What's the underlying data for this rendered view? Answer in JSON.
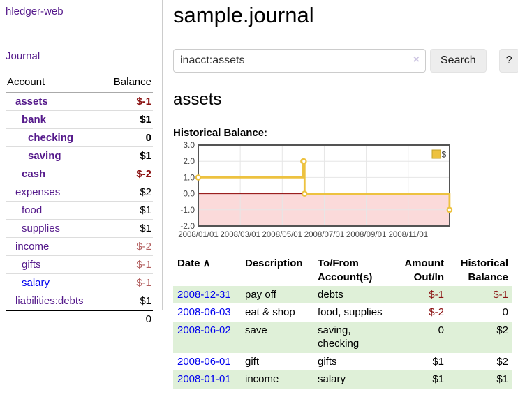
{
  "app": {
    "brand": "hledger-web"
  },
  "colors": {
    "link_purple": "#551a8b",
    "link_blue": "#0000ee",
    "negative_strong": "#8b1212",
    "negative_soft": "#b25e5e",
    "row_stripe_green": "#dff0d8",
    "chart_series_gold": "#edc240",
    "chart_negative_region": "#fbdada",
    "chart_zero_line": "#8b0000"
  },
  "sidebar": {
    "journal_link": "Journal",
    "accounts": {
      "header_account": "Account",
      "header_balance": "Balance",
      "rows": [
        {
          "name": "assets",
          "depth": 0,
          "strong": true,
          "balance": "$-1",
          "balance_class": "neg-strong"
        },
        {
          "name": "bank",
          "depth": 1,
          "strong": true,
          "balance": "$1",
          "balance_class": ""
        },
        {
          "name": "checking",
          "depth": 2,
          "strong": true,
          "balance": "0",
          "balance_class": ""
        },
        {
          "name": "saving",
          "depth": 2,
          "strong": true,
          "balance": "$1",
          "balance_class": ""
        },
        {
          "name": "cash",
          "depth": 1,
          "strong": true,
          "balance": "$-2",
          "balance_class": "neg-strong"
        },
        {
          "name": "expenses",
          "depth": 0,
          "strong": false,
          "balance": "$2",
          "balance_class": ""
        },
        {
          "name": "food",
          "depth": 1,
          "strong": false,
          "balance": "$1",
          "balance_class": ""
        },
        {
          "name": "supplies",
          "depth": 1,
          "strong": false,
          "balance": "$1",
          "balance_class": ""
        },
        {
          "name": "income",
          "depth": 0,
          "strong": false,
          "balance": "$-2",
          "balance_class": "neg-soft"
        },
        {
          "name": "gifts",
          "depth": 1,
          "strong": false,
          "balance": "$-1",
          "balance_class": "neg-soft"
        },
        {
          "name": "salary",
          "depth": 1,
          "strong": false,
          "link_blue": true,
          "balance": "$-1",
          "balance_class": "neg-soft"
        },
        {
          "name": "liabilities:debts",
          "depth": 0,
          "strong": false,
          "balance": "$1",
          "balance_class": ""
        }
      ],
      "total": "0"
    }
  },
  "main": {
    "title": "sample.journal",
    "search": {
      "value": "inacct:assets",
      "clear_icon": "×",
      "button_label": "Search",
      "help_label": "?"
    },
    "account_heading": "assets",
    "section_label": "Historical Balance:",
    "register": {
      "sort_indicator": "∧",
      "headers": [
        {
          "label": "Date",
          "align": "left",
          "sortable": true
        },
        {
          "label": "Description",
          "align": "left"
        },
        {
          "label": "To/From Account(s)",
          "align": "left"
        },
        {
          "label": "Amount Out/In",
          "align": "right"
        },
        {
          "label": "Historical Balance",
          "align": "right"
        }
      ],
      "rows": [
        {
          "date": "2008-12-31",
          "description": "pay off",
          "accounts": "debts",
          "amount": "$-1",
          "amount_class": "neg-strong",
          "balance": "$-1",
          "balance_class": "neg-strong",
          "stripe": true
        },
        {
          "date": "2008-06-03",
          "description": "eat & shop",
          "accounts": "food, supplies",
          "amount": "$-2",
          "amount_class": "neg-strong",
          "balance": "0",
          "balance_class": "",
          "stripe": false
        },
        {
          "date": "2008-06-02",
          "description": "save",
          "accounts": "saving, checking",
          "amount": "0",
          "amount_class": "",
          "balance": "$2",
          "balance_class": "",
          "stripe": true
        },
        {
          "date": "2008-06-01",
          "description": "gift",
          "accounts": "gifts",
          "amount": "$1",
          "amount_class": "",
          "balance": "$2",
          "balance_class": "",
          "stripe": false
        },
        {
          "date": "2008-01-01",
          "description": "income",
          "accounts": "salary",
          "amount": "$1",
          "amount_class": "",
          "balance": "$1",
          "balance_class": "",
          "stripe": true
        }
      ]
    }
  },
  "chart_data": {
    "type": "line",
    "step": true,
    "title": "Historical Balance",
    "xlabel": "",
    "ylabel": "",
    "ylim": [
      -2,
      3
    ],
    "yticks": [
      3.0,
      2.0,
      1.0,
      0.0,
      -1.0,
      -2.0
    ],
    "xticks": [
      "2008/01/01",
      "2008/03/01",
      "2008/05/01",
      "2008/07/01",
      "2008/09/01",
      "2008/11/01"
    ],
    "grid": true,
    "legend": {
      "label": "$",
      "position": "top-right"
    },
    "negative_region_color": "#fbdada",
    "zero_line_color": "#8b0000",
    "series": [
      {
        "name": "$",
        "color": "#edc240",
        "points": [
          [
            "2008-01-01",
            1
          ],
          [
            "2008-06-01",
            2
          ],
          [
            "2008-06-02",
            2
          ],
          [
            "2008-06-03",
            0
          ],
          [
            "2008-12-31",
            -1
          ]
        ]
      }
    ]
  }
}
